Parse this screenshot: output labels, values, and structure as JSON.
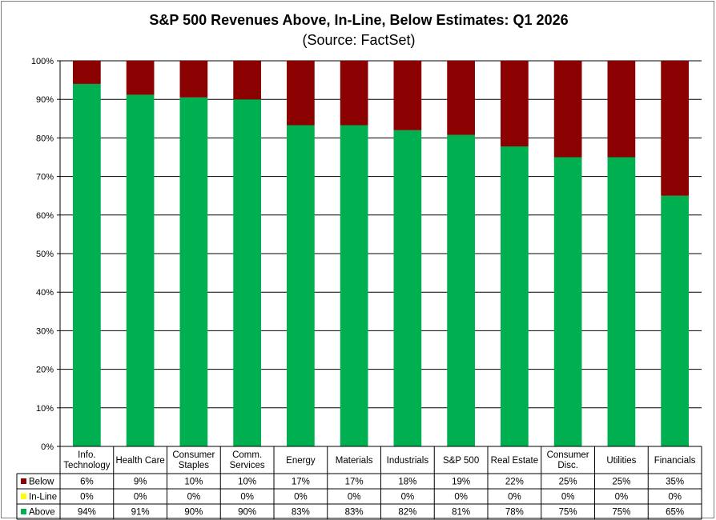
{
  "chart_data": {
    "type": "bar",
    "stacked": true,
    "title": "S&P 500 Revenues Above, In-Line, Below Estimates: Q1 2026",
    "subtitle": "(Source: FactSet)",
    "categories": [
      [
        "Info.",
        "Technology"
      ],
      [
        "Health Care"
      ],
      [
        "Consumer",
        "Staples"
      ],
      [
        "Comm.",
        "Services"
      ],
      [
        "Energy"
      ],
      [
        "Materials"
      ],
      [
        "Industrials"
      ],
      [
        "S&P 500"
      ],
      [
        "Real Estate"
      ],
      [
        "Consumer",
        "Disc."
      ],
      [
        "Utilities"
      ],
      [
        "Financials"
      ]
    ],
    "series": [
      {
        "name": "Below",
        "color": "#8b0000",
        "labels": [
          "6%",
          "9%",
          "10%",
          "10%",
          "17%",
          "17%",
          "18%",
          "19%",
          "22%",
          "25%",
          "25%",
          "35%"
        ]
      },
      {
        "name": "In-Line",
        "color": "#ffff00",
        "labels": [
          "0%",
          "0%",
          "0%",
          "0%",
          "0%",
          "0%",
          "0%",
          "0%",
          "0%",
          "0%",
          "0%",
          "0%"
        ]
      },
      {
        "name": "Above",
        "color": "#00b050",
        "labels": [
          "94%",
          "91%",
          "90%",
          "90%",
          "83%",
          "83%",
          "82%",
          "81%",
          "78%",
          "75%",
          "75%",
          "65%"
        ]
      }
    ],
    "above_values": [
      94.0,
      91.2,
      90.5,
      90.0,
      83.3,
      83.3,
      82.0,
      80.8,
      77.8,
      75.0,
      75.0,
      65.0
    ],
    "ylim": [
      0,
      100
    ],
    "yticks": [
      "0%",
      "10%",
      "20%",
      "30%",
      "40%",
      "50%",
      "60%",
      "70%",
      "80%",
      "90%",
      "100%"
    ],
    "grid": true,
    "legend_placement": "data-table-left"
  }
}
